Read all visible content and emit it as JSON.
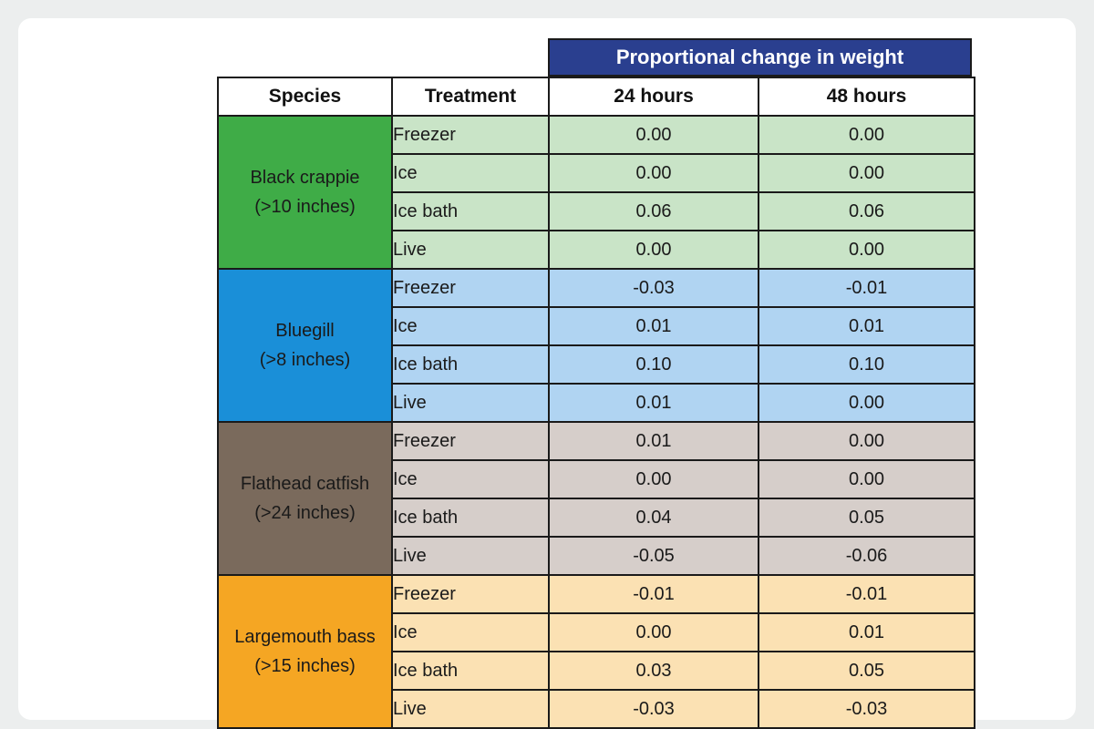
{
  "chart_data": {
    "type": "table",
    "title": "Proportional change in weight",
    "columns": [
      "Species",
      "Treatment",
      "24 hours",
      "48 hours"
    ],
    "groups": [
      {
        "species": "Black crappie",
        "size": "(>10 inches)",
        "color": "#3fac47",
        "row_color": "#c9e4c7",
        "rows": [
          {
            "treatment": "Freezer",
            "h24": "0.00",
            "h48": "0.00"
          },
          {
            "treatment": "Ice",
            "h24": "0.00",
            "h48": "0.00"
          },
          {
            "treatment": "Ice bath",
            "h24": "0.06",
            "h48": "0.06"
          },
          {
            "treatment": "Live",
            "h24": "0.00",
            "h48": "0.00"
          }
        ]
      },
      {
        "species": "Bluegill",
        "size": "(>8 inches)",
        "color": "#1a8fd8",
        "row_color": "#b0d4f2",
        "rows": [
          {
            "treatment": "Freezer",
            "h24": "-0.03",
            "h48": "-0.01"
          },
          {
            "treatment": "Ice",
            "h24": "0.01",
            "h48": "0.01"
          },
          {
            "treatment": "Ice bath",
            "h24": "0.10",
            "h48": "0.10"
          },
          {
            "treatment": "Live",
            "h24": "0.01",
            "h48": "0.00"
          }
        ]
      },
      {
        "species": "Flathead catfish",
        "size": "(>24 inches)",
        "color": "#7a6a5c",
        "row_color": "#d6ceca",
        "rows": [
          {
            "treatment": "Freezer",
            "h24": "0.01",
            "h48": "0.00"
          },
          {
            "treatment": "Ice",
            "h24": "0.00",
            "h48": "0.00"
          },
          {
            "treatment": "Ice bath",
            "h24": "0.04",
            "h48": "0.05"
          },
          {
            "treatment": "Live",
            "h24": "-0.05",
            "h48": "-0.06"
          }
        ]
      },
      {
        "species": "Largemouth bass",
        "size": "(>15 inches)",
        "color": "#f5a623",
        "row_color": "#fbe1b3",
        "rows": [
          {
            "treatment": "Freezer",
            "h24": "-0.01",
            "h48": "-0.01"
          },
          {
            "treatment": "Ice",
            "h24": "0.00",
            "h48": "0.01"
          },
          {
            "treatment": "Ice bath",
            "h24": "0.03",
            "h48": "0.05"
          },
          {
            "treatment": "Live",
            "h24": "-0.03",
            "h48": "-0.03"
          }
        ]
      }
    ]
  }
}
